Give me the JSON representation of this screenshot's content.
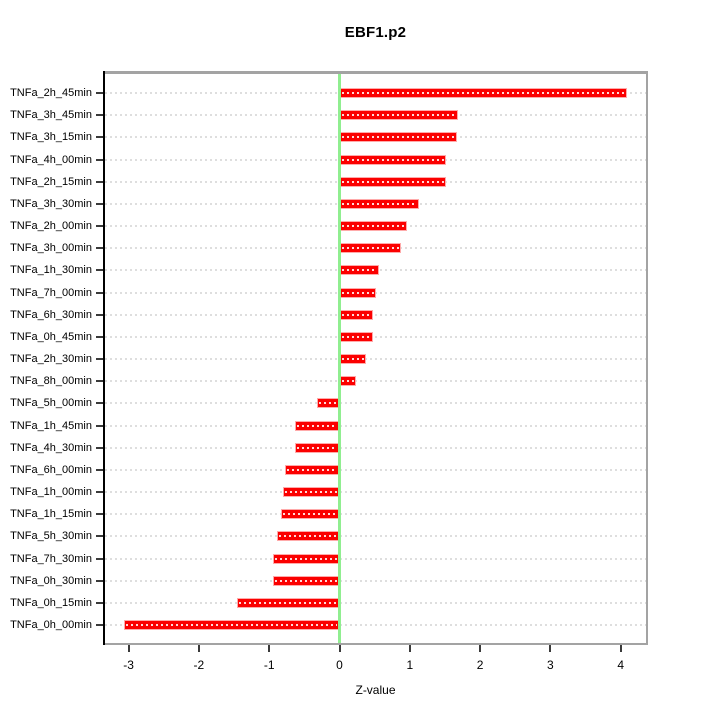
{
  "title": "EBF1.p2",
  "chart_data": {
    "type": "bar",
    "orientation": "horizontal",
    "title": "EBF1.p2",
    "xlabel": "Z-value",
    "ylabel": "",
    "xlim": [
      -3.36,
      4.39
    ],
    "x_ticks": [
      -3,
      -2,
      -1,
      0,
      1,
      2,
      3,
      4
    ],
    "grid": "dotted horizontal row guides",
    "legend_position": "none",
    "zero_line": {
      "value": 0,
      "color": "#90ee90"
    },
    "bar_color": "#fb0000",
    "bar_border_color": "#ffaaaa",
    "box_color": "#a3a3a3",
    "categories": [
      "TNFa_2h_45min",
      "TNFa_3h_45min",
      "TNFa_3h_15min",
      "TNFa_4h_00min",
      "TNFa_2h_15min",
      "TNFa_3h_30min",
      "TNFa_2h_00min",
      "TNFa_3h_00min",
      "TNFa_1h_30min",
      "TNFa_7h_00min",
      "TNFa_6h_30min",
      "TNFa_0h_45min",
      "TNFa_2h_30min",
      "TNFa_8h_00min",
      "TNFa_5h_00min",
      "TNFa_1h_45min",
      "TNFa_4h_30min",
      "TNFa_6h_00min",
      "TNFa_1h_00min",
      "TNFa_1h_15min",
      "TNFa_5h_30min",
      "TNFa_7h_30min",
      "TNFa_0h_30min",
      "TNFa_0h_15min",
      "TNFa_0h_00min"
    ],
    "values": [
      4.09,
      1.69,
      1.67,
      1.52,
      1.51,
      1.13,
      0.96,
      0.87,
      0.56,
      0.52,
      0.48,
      0.47,
      0.38,
      0.23,
      -0.32,
      -0.63,
      -0.64,
      -0.78,
      -0.81,
      -0.83,
      -0.89,
      -0.94,
      -0.94,
      -1.46,
      -3.06
    ]
  }
}
